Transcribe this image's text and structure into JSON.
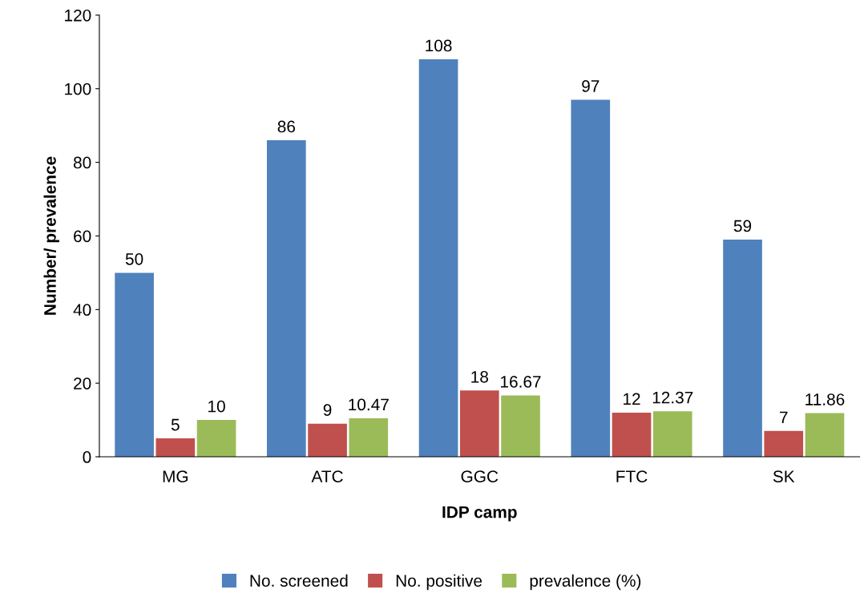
{
  "chart_data": {
    "type": "bar",
    "xlabel": "IDP camp",
    "ylabel": "Number/ prevalence",
    "categories": [
      "MG",
      "ATC",
      "GGC",
      "FTC",
      "SK"
    ],
    "series": [
      {
        "name": "No. screened",
        "color": "#4f81bd",
        "values": [
          50,
          86,
          108,
          97,
          59
        ]
      },
      {
        "name": "No. positive",
        "color": "#c0504d",
        "values": [
          5,
          9,
          18,
          12,
          7
        ]
      },
      {
        "name": "prevalence (%)",
        "color": "#9bbb59",
        "values": [
          10,
          10.47,
          16.67,
          12.37,
          11.86
        ]
      }
    ],
    "ylim": [
      0,
      120
    ],
    "yticks": [
      0,
      20,
      40,
      60,
      80,
      100,
      120
    ],
    "grid": false,
    "legend": "bottom",
    "data_labels": true
  }
}
